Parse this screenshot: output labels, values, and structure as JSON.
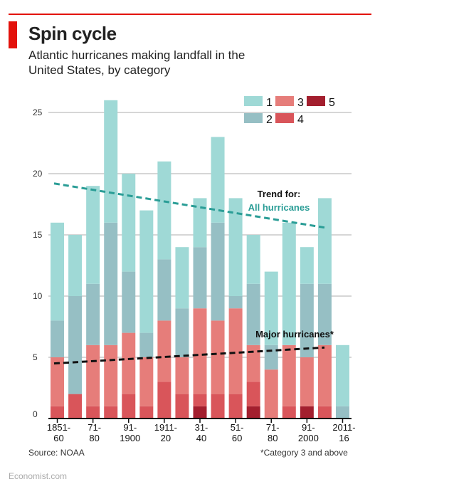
{
  "header": {
    "title": "Spin cycle",
    "subtitle": "Atlantic hurricanes making landfall in the United States, by category"
  },
  "footer": {
    "source": "Source: NOAA",
    "footnote": "*Category 3 and above",
    "brand": "Economist.com"
  },
  "colors": {
    "cat1": "#9fd9d6",
    "cat2": "#96bfc4",
    "cat3": "#e67d7a",
    "cat4": "#d9555a",
    "cat5": "#a31f2e",
    "trend_all": "#2a9d96",
    "trend_major": "#111111",
    "grid": "#c8c8c8",
    "accent": "#e3120b"
  },
  "chart_data": {
    "type": "bar",
    "stacked": true,
    "title": "Spin cycle",
    "subtitle": "Atlantic hurricanes making landfall in the United States, by category",
    "categories_top": [
      "1851-",
      "71-",
      "91-",
      "1911-",
      "31-",
      "51-",
      "71-",
      "91-",
      "2011-"
    ],
    "categories_bottom": [
      "60",
      "80",
      "1900",
      "20",
      "40",
      "60",
      "80",
      "2000",
      "16"
    ],
    "bar_count": 17,
    "yticks": [
      0,
      5,
      10,
      15,
      20,
      25
    ],
    "ylim": [
      0,
      26
    ],
    "grid": true,
    "series": [
      {
        "name": "5",
        "values": [
          0,
          0,
          0,
          0,
          0,
          0,
          0,
          0,
          1,
          0,
          0,
          1,
          0,
          0,
          1,
          0,
          0
        ]
      },
      {
        "name": "4",
        "values": [
          1,
          2,
          1,
          1,
          2,
          1,
          3,
          2,
          1,
          2,
          2,
          2,
          0,
          1,
          0,
          1,
          0
        ]
      },
      {
        "name": "3",
        "values": [
          4,
          0,
          5,
          5,
          5,
          4,
          5,
          3,
          7,
          6,
          7,
          3,
          4,
          5,
          4,
          5,
          0
        ]
      },
      {
        "name": "2",
        "values": [
          3,
          8,
          5,
          10,
          5,
          2,
          5,
          4,
          5,
          8,
          1,
          5,
          2,
          0,
          6,
          5,
          1
        ]
      },
      {
        "name": "1",
        "values": [
          8,
          5,
          8,
          10,
          8,
          10,
          8,
          5,
          4,
          7,
          8,
          4,
          6,
          10,
          3,
          7,
          5
        ]
      }
    ],
    "legend": [
      "1",
      "2",
      "3",
      "4",
      "5"
    ],
    "legend_position": "top-right",
    "trends": [
      {
        "name": "All hurricanes",
        "label_line1": "Trend for:",
        "label_line2": "All hurricanes",
        "start": 19.2,
        "end": 15.6,
        "style": "dashed"
      },
      {
        "name": "Major hurricanes",
        "label": "Major hurricanes*",
        "start": 4.5,
        "end": 5.8,
        "style": "dashed"
      }
    ]
  }
}
